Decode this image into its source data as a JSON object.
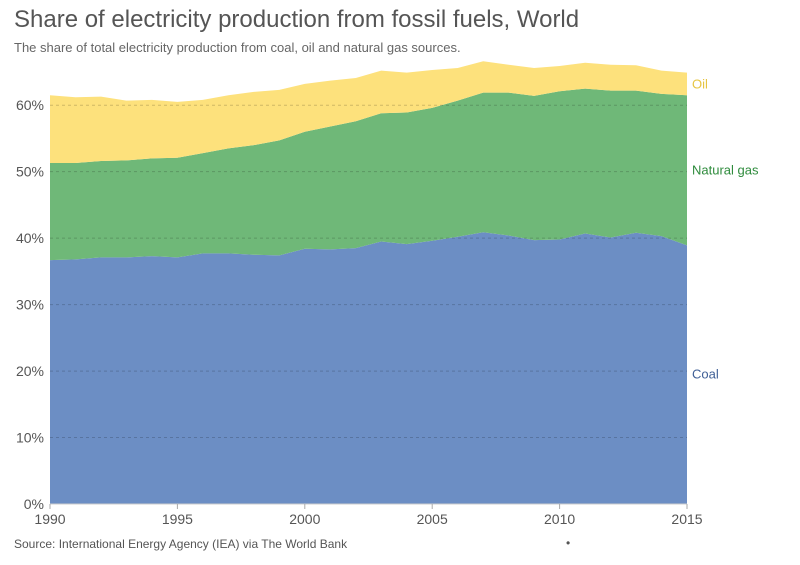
{
  "chart_data": {
    "type": "area",
    "stacked": true,
    "title": "Share of electricity production from fossil fuels, World",
    "subtitle": "The share of total electricity production from coal, oil and natural gas sources.",
    "source": "Source: International Energy Agency (IEA) via The World Bank",
    "footer_mark": "•",
    "x": [
      1990,
      1991,
      1992,
      1993,
      1994,
      1995,
      1996,
      1997,
      1998,
      1999,
      2000,
      2001,
      2002,
      2003,
      2004,
      2005,
      2006,
      2007,
      2008,
      2009,
      2010,
      2011,
      2012,
      2013,
      2014,
      2015
    ],
    "series": [
      {
        "name": "Coal",
        "color": "#6c8ec4",
        "label_color": "#3f5f96",
        "values": [
          36.7,
          36.8,
          37.1,
          37.1,
          37.3,
          37.1,
          37.7,
          37.7,
          37.5,
          37.4,
          38.4,
          38.3,
          38.5,
          39.5,
          39.1,
          39.6,
          40.2,
          40.9,
          40.4,
          39.7,
          39.8,
          40.7,
          40.1,
          40.8,
          40.3,
          38.9
        ]
      },
      {
        "name": "Natural gas",
        "color": "#6fb878",
        "label_color": "#2e8b3c",
        "values": [
          14.6,
          14.5,
          14.5,
          14.6,
          14.7,
          15.0,
          15.1,
          15.8,
          16.5,
          17.3,
          17.6,
          18.5,
          19.1,
          19.3,
          19.8,
          20.0,
          20.5,
          21.0,
          21.5,
          21.7,
          22.3,
          21.8,
          22.1,
          21.4,
          21.4,
          22.6
        ]
      },
      {
        "name": "Oil",
        "color": "#fde17c",
        "label_color": "#e6c542",
        "values": [
          10.2,
          9.9,
          9.7,
          9.0,
          8.8,
          8.4,
          8.0,
          8.0,
          8.0,
          7.6,
          7.2,
          6.9,
          6.5,
          6.4,
          6.0,
          5.7,
          4.9,
          4.7,
          4.2,
          4.2,
          3.8,
          3.9,
          3.9,
          3.8,
          3.5,
          3.4
        ]
      }
    ],
    "xlim": [
      1990,
      2015
    ],
    "ylim": [
      0,
      66.5
    ],
    "x_ticks": [
      1990,
      1995,
      2000,
      2005,
      2010,
      2015
    ],
    "y_ticks": [
      0,
      10,
      20,
      30,
      40,
      50,
      60
    ],
    "y_tick_labels": [
      "0%",
      "10%",
      "20%",
      "30%",
      "40%",
      "50%",
      "60%"
    ],
    "grid": true,
    "legend": "inline-right"
  }
}
